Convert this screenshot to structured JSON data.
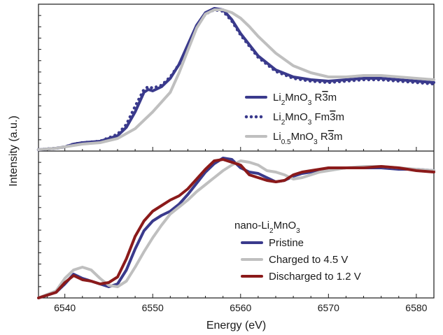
{
  "chart_data": [
    {
      "type": "line",
      "panel": "top",
      "title": "",
      "xlabel": "Energy (eV)",
      "ylabel": "Intensity (a.u.)",
      "xlim": [
        6537,
        6582
      ],
      "ylim": [
        0,
        1.05
      ],
      "legend_placement": "bottom-right",
      "series": [
        {
          "name": "Li2MnO3 R-3m",
          "legend_label": {
            "pre": "Li",
            "sub": "2",
            "mid": "MnO",
            "sub2": "3",
            "post": " R",
            "over": "3",
            "post2": "m"
          },
          "style": "solid",
          "color": "#3a3a8c",
          "x": [
            6537,
            6539,
            6540,
            6541,
            6542,
            6544,
            6546,
            6547,
            6548,
            6549,
            6549.5,
            6550,
            6551,
            6552,
            6553,
            6554,
            6555,
            6556,
            6557,
            6558,
            6559,
            6560,
            6562,
            6564,
            6566,
            6568,
            6570,
            6572,
            6574,
            6576,
            6578,
            6580,
            6582
          ],
          "y": [
            0.01,
            0.02,
            0.03,
            0.05,
            0.06,
            0.07,
            0.11,
            0.17,
            0.28,
            0.42,
            0.44,
            0.43,
            0.46,
            0.52,
            0.62,
            0.76,
            0.9,
            0.99,
            1.02,
            1.01,
            0.94,
            0.84,
            0.68,
            0.58,
            0.53,
            0.51,
            0.5,
            0.51,
            0.52,
            0.52,
            0.51,
            0.5,
            0.49
          ]
        },
        {
          "name": "Li2MnO3 Fm-3m",
          "legend_label": {
            "pre": "Li",
            "sub": "2",
            "mid": "MnO",
            "sub2": "3",
            "post": " Fm",
            "over": "3",
            "post2": "m"
          },
          "style": "dotted",
          "color": "#3a3a8c",
          "x": [
            6537,
            6539,
            6540,
            6541,
            6542,
            6544,
            6546,
            6547,
            6548,
            6549,
            6549.5,
            6550,
            6551,
            6552,
            6553,
            6554,
            6555,
            6556,
            6557,
            6558,
            6559,
            6560,
            6562,
            6564,
            6566,
            6568,
            6570,
            6572,
            6574,
            6576,
            6578,
            6580,
            6582
          ],
          "y": [
            0.01,
            0.02,
            0.03,
            0.05,
            0.06,
            0.07,
            0.12,
            0.19,
            0.32,
            0.44,
            0.46,
            0.45,
            0.47,
            0.53,
            0.62,
            0.75,
            0.89,
            0.98,
            1.01,
            1.0,
            0.93,
            0.83,
            0.67,
            0.57,
            0.52,
            0.5,
            0.49,
            0.5,
            0.51,
            0.51,
            0.5,
            0.49,
            0.48
          ]
        },
        {
          "name": "Li0.5MnO3 R-3m",
          "legend_label": {
            "pre": "Li",
            "sub": "0.5",
            "mid": "MnO",
            "sub2": "3",
            "post": " R",
            "over": "3",
            "post2": "m"
          },
          "style": "solid",
          "color": "#bfbfbf",
          "x": [
            6537,
            6539,
            6540,
            6541,
            6542,
            6544,
            6546,
            6548,
            6550,
            6552,
            6553,
            6554,
            6555,
            6556,
            6557,
            6558,
            6559,
            6560,
            6561,
            6562,
            6564,
            6566,
            6568,
            6570,
            6572,
            6574,
            6576,
            6578,
            6580,
            6582
          ],
          "y": [
            0.01,
            0.02,
            0.03,
            0.04,
            0.05,
            0.06,
            0.09,
            0.16,
            0.28,
            0.42,
            0.56,
            0.72,
            0.88,
            0.98,
            1.01,
            1.01,
            0.99,
            0.95,
            0.89,
            0.82,
            0.7,
            0.61,
            0.56,
            0.53,
            0.53,
            0.54,
            0.54,
            0.53,
            0.52,
            0.51
          ]
        }
      ]
    },
    {
      "type": "line",
      "panel": "bottom",
      "title": "",
      "xlabel": "Energy (eV)",
      "ylabel": "Intensity (a.u.)",
      "xlim": [
        6537,
        6582
      ],
      "ylim": [
        0,
        1.05
      ],
      "legend_placement": "bottom-right",
      "legend_title": {
        "pre": "nano-Li",
        "sub": "2",
        "mid": "MnO",
        "sub2": "3"
      },
      "x_ticks": [
        6540,
        6550,
        6560,
        6570,
        6580
      ],
      "series": [
        {
          "name": "Pristine",
          "color": "#3a3a8c",
          "x": [
            6537,
            6539,
            6540,
            6541,
            6542,
            6543,
            6544,
            6545,
            6546,
            6547,
            6548,
            6549,
            6550,
            6551,
            6552,
            6553,
            6554,
            6555,
            6556,
            6557,
            6558,
            6559,
            6560,
            6561,
            6562,
            6563,
            6564,
            6565,
            6566,
            6567,
            6568,
            6569,
            6570,
            6572,
            6574,
            6576,
            6578,
            6580,
            6582
          ],
          "y": [
            0.0,
            0.04,
            0.1,
            0.17,
            0.14,
            0.12,
            0.1,
            0.08,
            0.1,
            0.2,
            0.35,
            0.48,
            0.55,
            0.59,
            0.62,
            0.67,
            0.74,
            0.82,
            0.9,
            0.96,
            1.0,
            0.99,
            0.93,
            0.9,
            0.89,
            0.86,
            0.83,
            0.84,
            0.87,
            0.89,
            0.9,
            0.91,
            0.92,
            0.93,
            0.93,
            0.93,
            0.92,
            0.92,
            0.91
          ]
        },
        {
          "name": "Charged to 4.5 V",
          "color": "#bfbfbf",
          "x": [
            6537,
            6539,
            6540,
            6541,
            6542,
            6543,
            6544,
            6545,
            6546,
            6547,
            6548,
            6549,
            6550,
            6551,
            6552,
            6553,
            6554,
            6555,
            6556,
            6557,
            6558,
            6559,
            6560,
            6561,
            6562,
            6563,
            6564,
            6565,
            6566,
            6567,
            6568,
            6569,
            6570,
            6572,
            6574,
            6576,
            6578,
            6580,
            6582
          ],
          "y": [
            0.0,
            0.05,
            0.14,
            0.2,
            0.22,
            0.2,
            0.14,
            0.09,
            0.08,
            0.12,
            0.22,
            0.33,
            0.43,
            0.52,
            0.6,
            0.65,
            0.7,
            0.76,
            0.81,
            0.86,
            0.91,
            0.95,
            0.98,
            0.97,
            0.95,
            0.91,
            0.9,
            0.88,
            0.85,
            0.86,
            0.88,
            0.9,
            0.91,
            0.93,
            0.94,
            0.94,
            0.93,
            0.92,
            0.91
          ]
        },
        {
          "name": "Discharged to 1.2 V",
          "color": "#8b1a1a",
          "x": [
            6537,
            6539,
            6540,
            6541,
            6542,
            6543,
            6544,
            6545,
            6546,
            6547,
            6548,
            6549,
            6550,
            6551,
            6552,
            6553,
            6554,
            6555,
            6556,
            6557,
            6558,
            6559,
            6560,
            6561,
            6562,
            6563,
            6564,
            6565,
            6566,
            6567,
            6568,
            6569,
            6570,
            6572,
            6574,
            6576,
            6578,
            6580,
            6582
          ],
          "y": [
            0.0,
            0.04,
            0.11,
            0.16,
            0.13,
            0.12,
            0.1,
            0.11,
            0.15,
            0.28,
            0.44,
            0.55,
            0.62,
            0.66,
            0.7,
            0.73,
            0.78,
            0.85,
            0.92,
            0.98,
            0.99,
            0.97,
            0.95,
            0.88,
            0.86,
            0.84,
            0.83,
            0.84,
            0.88,
            0.9,
            0.91,
            0.92,
            0.93,
            0.93,
            0.93,
            0.94,
            0.93,
            0.91,
            0.9
          ]
        }
      ]
    }
  ]
}
